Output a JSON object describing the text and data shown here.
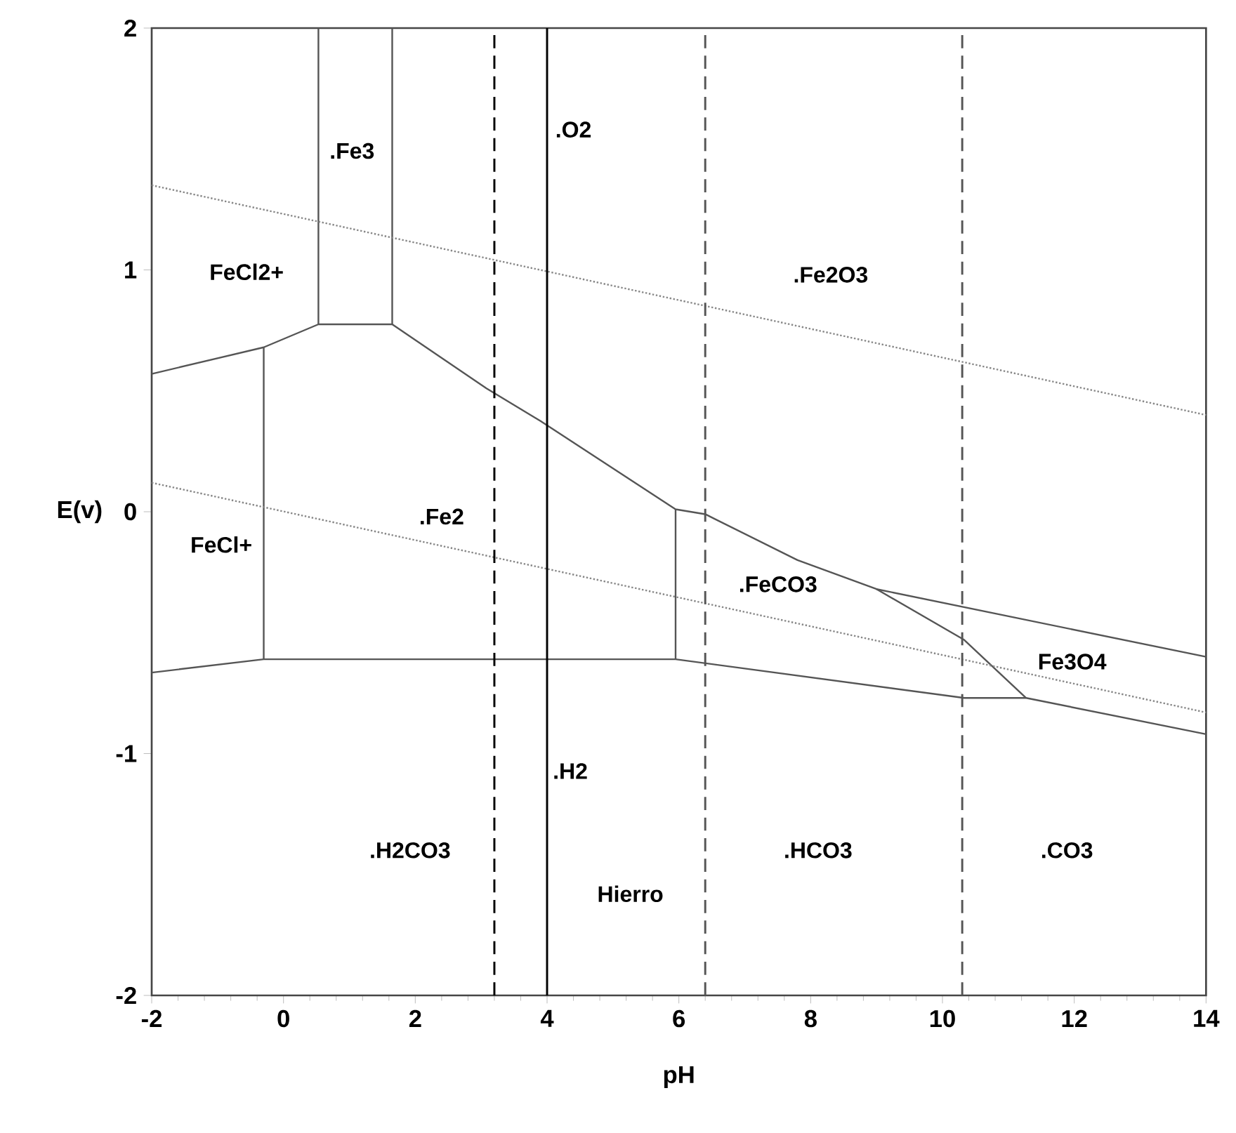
{
  "chart_data": {
    "type": "line",
    "xlabel": "pH",
    "ylabel": "E(v)",
    "xlim": [
      -2,
      14
    ],
    "ylim": [
      -2,
      2
    ],
    "xticks": [
      -2,
      0,
      2,
      4,
      6,
      8,
      10,
      12,
      14
    ],
    "yticks": [
      -2,
      -1,
      0,
      1,
      2
    ],
    "series": [
      {
        "color": "#555555",
        "x": [
          -2,
          -0.3,
          0.53,
          1.65,
          3.08,
          3.9,
          5.95,
          6.4,
          7.8,
          9.0,
          14
        ],
        "values": [
          0.57,
          0.68,
          0.775,
          0.775,
          0.51,
          0.375,
          0.01,
          -0.01,
          -0.2,
          -0.32,
          -0.6
        ]
      },
      {
        "color": "#555555",
        "x": [
          -0.3,
          -0.3
        ],
        "values": [
          -0.61,
          0.68
        ]
      },
      {
        "color": "#555555",
        "x": [
          0.53,
          0.53
        ],
        "values": [
          0.775,
          2
        ]
      },
      {
        "color": "#555555",
        "x": [
          1.65,
          1.65
        ],
        "values": [
          0.775,
          2
        ]
      },
      {
        "color": "#555555",
        "x": [
          -2,
          -0.3,
          5.95,
          10.33,
          11.27,
          14
        ],
        "values": [
          -0.665,
          -0.61,
          -0.61,
          -0.77,
          -0.77,
          -0.92
        ]
      },
      {
        "color": "#555555",
        "x": [
          5.95,
          5.95
        ],
        "values": [
          -0.61,
          0.01
        ]
      },
      {
        "color": "#555555",
        "x": [
          9.0,
          10.33,
          11.27
        ],
        "values": [
          -0.32,
          -0.53,
          -0.77
        ]
      },
      {
        "color": "#888888",
        "line_style": "dotted",
        "x": [
          -2,
          14
        ],
        "values": [
          1.35,
          0.4
        ]
      },
      {
        "color": "#888888",
        "line_style": "dotted",
        "x": [
          -2,
          14
        ],
        "values": [
          0.12,
          -0.83
        ]
      }
    ],
    "ref_lines": [
      {
        "axis": "x",
        "value": 3.2,
        "color": "#000000",
        "line_style": "dashed"
      },
      {
        "axis": "x",
        "value": 4.0,
        "color": "#000000",
        "line_style": "solid"
      },
      {
        "axis": "x",
        "value": 6.4,
        "color": "#555555",
        "line_style": "dashed"
      },
      {
        "axis": "x",
        "value": 10.3,
        "color": "#555555",
        "line_style": "dashed"
      }
    ],
    "annotations": [
      "FeCl2+",
      ".Fe3",
      ".O2",
      ".Fe2O3",
      "FeCl+",
      ".Fe2",
      ".FeCO3",
      "Fe3O4",
      ".H2",
      ".H2CO3",
      ".HCO3",
      ".CO3",
      "Hierro"
    ]
  }
}
